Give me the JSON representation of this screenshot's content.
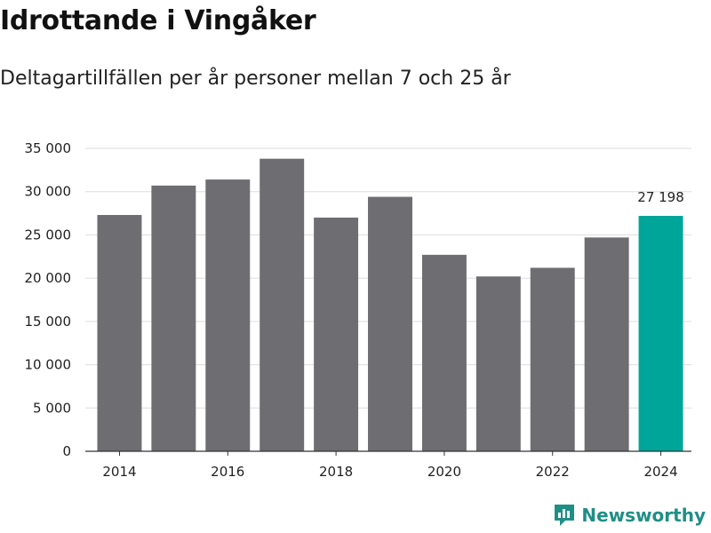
{
  "header": {
    "title": "Idrottande i Vingåker",
    "subtitle": "Deltagartillfällen per år personer mellan 7 och 25 år"
  },
  "brand": {
    "name": "Newsworthy",
    "icon": "newsworthy-logo-icon",
    "color": "#1f8f86"
  },
  "colors": {
    "bar": "#6e6d72",
    "highlight": "#00a59a",
    "grid": "#dddddd",
    "axis": "#333333"
  },
  "chart_data": {
    "type": "bar",
    "title": "Idrottande i Vingåker",
    "subtitle": "Deltagartillfällen per år personer mellan 7 och 25 år",
    "xlabel": "",
    "ylabel": "",
    "categories": [
      2014,
      2015,
      2016,
      2017,
      2018,
      2019,
      2020,
      2021,
      2022,
      2023,
      2024
    ],
    "values": [
      27300,
      30700,
      31400,
      33800,
      27000,
      29400,
      22700,
      20200,
      21200,
      24700,
      27198
    ],
    "highlight_category": 2024,
    "highlight_label": "27 198",
    "ylim": [
      0,
      35000
    ],
    "yticks": [
      0,
      5000,
      10000,
      15000,
      20000,
      25000,
      30000,
      35000
    ],
    "ytick_labels": [
      "0",
      "5 000",
      "10 000",
      "15 000",
      "20 000",
      "25 000",
      "30 000",
      "35 000"
    ],
    "xtick_categories": [
      2014,
      2016,
      2018,
      2020,
      2022,
      2024
    ],
    "xtick_labels": [
      "2014",
      "2016",
      "2018",
      "2020",
      "2022",
      "2024"
    ],
    "grid": true,
    "legend": "none"
  }
}
